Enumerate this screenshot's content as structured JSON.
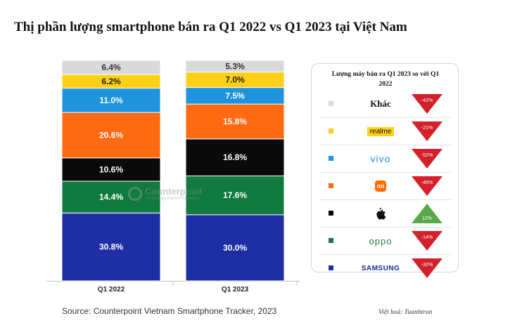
{
  "title": "Thị phần lượng smartphone bán ra Q1 2022 vs Q1 2023 tại Việt Nam",
  "chart_data": {
    "type": "bar",
    "stacked": true,
    "normalized_percent": true,
    "categories": [
      "Q1 2022",
      "Q1 2023"
    ],
    "series": [
      {
        "brand": "Samsung",
        "color": "#1e2fa6",
        "label_color": "#ffffff",
        "values": [
          30.8,
          30.0
        ],
        "labels": [
          "30.8%",
          "30.0%"
        ]
      },
      {
        "brand": "Oppo",
        "color": "#117a3e",
        "label_color": "#ffffff",
        "values": [
          14.4,
          17.6
        ],
        "labels": [
          "14.4%",
          "17.6%"
        ]
      },
      {
        "brand": "Apple",
        "color": "#0a0a0a",
        "label_color": "#ffffff",
        "values": [
          10.6,
          16.8
        ],
        "labels": [
          "10.6%",
          "16.8%"
        ]
      },
      {
        "brand": "Xiaomi",
        "color": "#ff6a13",
        "label_color": "#ffffff",
        "values": [
          20.6,
          15.8
        ],
        "labels": [
          "20.6%",
          "15.8%"
        ]
      },
      {
        "brand": "Vivo",
        "color": "#1f93dc",
        "label_color": "#ffffff",
        "values": [
          11.0,
          7.5
        ],
        "labels": [
          "11.0%",
          "7.5%"
        ]
      },
      {
        "brand": "Realme",
        "color": "#fdd017",
        "label_color": "#222222",
        "values": [
          6.2,
          7.0
        ],
        "labels": [
          "6.2%",
          "7.0%"
        ]
      },
      {
        "brand": "Khác",
        "color": "#d9d9d9",
        "label_color": "#333333",
        "values": [
          6.4,
          5.3
        ],
        "labels": [
          "6.4%",
          "5.3%"
        ]
      }
    ],
    "ylim": [
      0,
      100
    ],
    "grid": false,
    "legend": "right panel"
  },
  "watermark": {
    "name": "Counterpoint",
    "sub": "Technology Market Research"
  },
  "panel": {
    "title": "Lượng máy bán ra Q1 2023 so với Q1 2022",
    "rows": [
      {
        "brand": "Khác",
        "color": "#d9d9d9",
        "change": -42,
        "label": "-42%"
      },
      {
        "brand": "realme",
        "color": "#fdd017",
        "change": -21,
        "label": "-21%"
      },
      {
        "brand": "vivo",
        "color": "#1f93dc",
        "change": -52,
        "label": "-52%"
      },
      {
        "brand": "mi",
        "color": "#ff6a13",
        "change": -46,
        "label": "-46%"
      },
      {
        "brand": "apple",
        "color": "#0a0a0a",
        "change": 12,
        "label": "12%"
      },
      {
        "brand": "oppo",
        "color": "#117a3e",
        "change": -14,
        "label": "-14%"
      },
      {
        "brand": "SAMSUNG",
        "color": "#1e2fa6",
        "change": -32,
        "label": "-32%"
      }
    ],
    "down_color": "#d3202a",
    "up_color": "#5aa84a"
  },
  "source": "Source: Counterpoint Vietnam Smartphone Tracker, 2023",
  "credit": "Việt hoá: Tuanhtran"
}
